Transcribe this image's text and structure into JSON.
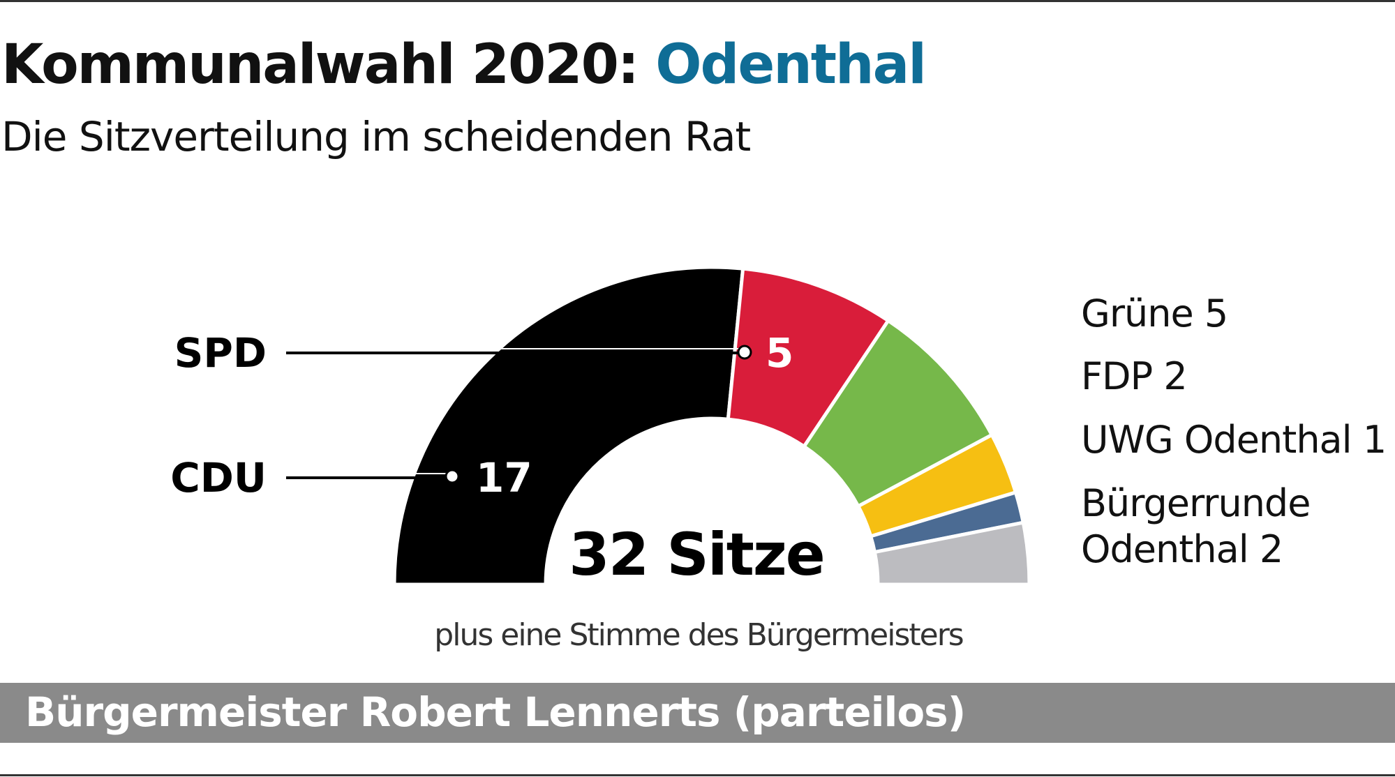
{
  "title": {
    "main": "Kommunalwahl 2020:",
    "place": "Odenthal"
  },
  "subtitle": "Die Sitzverteilung im scheidenden Rat",
  "chart_data": {
    "type": "pie",
    "variant": "semicircle-parliament",
    "total_label": "32 Sitze",
    "note": "plus eine Stimme des Bürgermeisters",
    "series": [
      {
        "name": "CDU",
        "values": 17,
        "color": "#000000",
        "label": "17"
      },
      {
        "name": "SPD",
        "values": 5,
        "color": "#d91d3a",
        "label": "5"
      },
      {
        "name": "Grüne",
        "values": 5,
        "color": "#76b84a"
      },
      {
        "name": "FDP",
        "values": 2,
        "color": "#f6bf12"
      },
      {
        "name": "UWG Odenthal",
        "values": 1,
        "color": "#4b6b93"
      },
      {
        "name": "Bürgerrunde Odenthal",
        "values": 2,
        "color": "#bcbcc0"
      }
    ],
    "callouts": {
      "cdu": "CDU",
      "spd": "SPD"
    },
    "legend": [
      "Grüne 5",
      "FDP 2",
      "UWG Odenthal 1",
      "Bürgerrunde",
      "Odenthal 2"
    ],
    "legend_placement": "right"
  },
  "footer": "Bürgermeister Robert Lennerts (parteilos)"
}
